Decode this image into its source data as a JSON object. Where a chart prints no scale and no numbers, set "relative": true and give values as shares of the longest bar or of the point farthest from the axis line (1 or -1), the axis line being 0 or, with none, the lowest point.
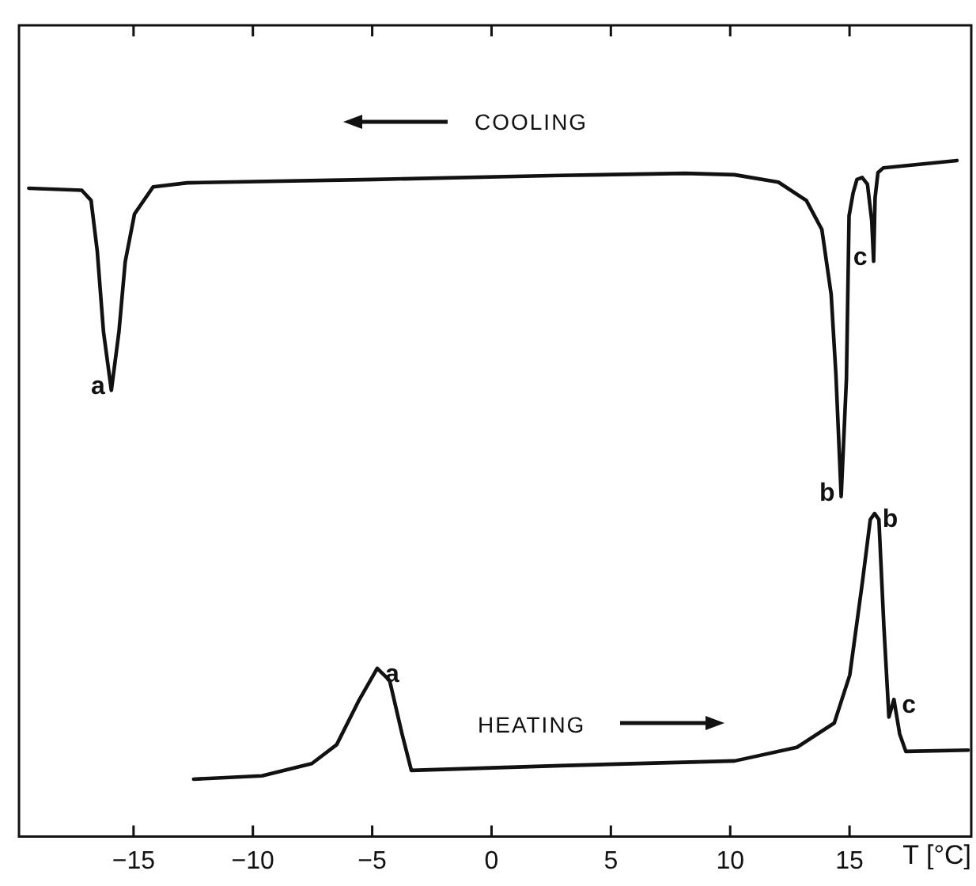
{
  "chart_data": {
    "type": "line",
    "relative": true,
    "xlabel": "T [°C]",
    "xlim": [
      -19.8,
      20.1
    ],
    "xticks": [
      -15,
      -10,
      -5,
      0,
      5,
      10,
      15
    ],
    "grid": false,
    "legend": false,
    "marker": "none",
    "series": [
      {
        "color": "#111111",
        "x": [
          -19.39,
          -17.17,
          -16.78,
          -16.52,
          -16.26,
          -15.93,
          -15.61,
          -15.35,
          -14.96,
          -14.18,
          -12.75,
          -4.93,
          2.88,
          8.11,
          10.17,
          12.02,
          13.19,
          13.84,
          14.23,
          14.43,
          14.65,
          14.87,
          14.98,
          15.15,
          15.31,
          15.53,
          15.75,
          15.93,
          16.01,
          16.07,
          16.19,
          16.41,
          19.5
        ],
        "values": [
          0.959,
          0.956,
          0.941,
          0.866,
          0.747,
          0.66,
          0.747,
          0.85,
          0.921,
          0.961,
          0.967,
          0.972,
          0.978,
          0.981,
          0.979,
          0.968,
          0.941,
          0.898,
          0.802,
          0.683,
          0.503,
          0.677,
          0.918,
          0.952,
          0.972,
          0.975,
          0.965,
          0.911,
          0.851,
          0.945,
          0.982,
          0.989,
          1.0
        ]
      },
      {
        "color": "#111111",
        "x": [
          -12.48,
          -9.62,
          -7.53,
          -6.49,
          -5.58,
          -4.79,
          -4.27,
          -3.75,
          -3.36,
          2.89,
          10.19,
          12.79,
          14.36,
          15.01,
          15.53,
          15.87,
          16.05,
          16.23,
          16.44,
          16.65,
          16.86,
          17.1,
          17.36,
          19.97
        ],
        "values": [
          0.085,
          0.09,
          0.108,
          0.136,
          0.2,
          0.249,
          0.231,
          0.152,
          0.098,
          0.105,
          0.112,
          0.132,
          0.168,
          0.239,
          0.374,
          0.469,
          0.478,
          0.469,
          0.31,
          0.177,
          0.203,
          0.152,
          0.126,
          0.128
        ]
      }
    ],
    "annotations": [
      {
        "text": "a",
        "x": -15.93,
        "y": 0.66
      },
      {
        "text": "b",
        "x": 14.65,
        "y": 0.503
      },
      {
        "text": "c",
        "x": 16.01,
        "y": 0.851
      },
      {
        "text": "a",
        "x": -4.79,
        "y": 0.249
      },
      {
        "text": "b",
        "x": 16.05,
        "y": 0.478
      },
      {
        "text": "c",
        "x": 16.86,
        "y": 0.203
      },
      "COOLING",
      "HEATING"
    ]
  }
}
